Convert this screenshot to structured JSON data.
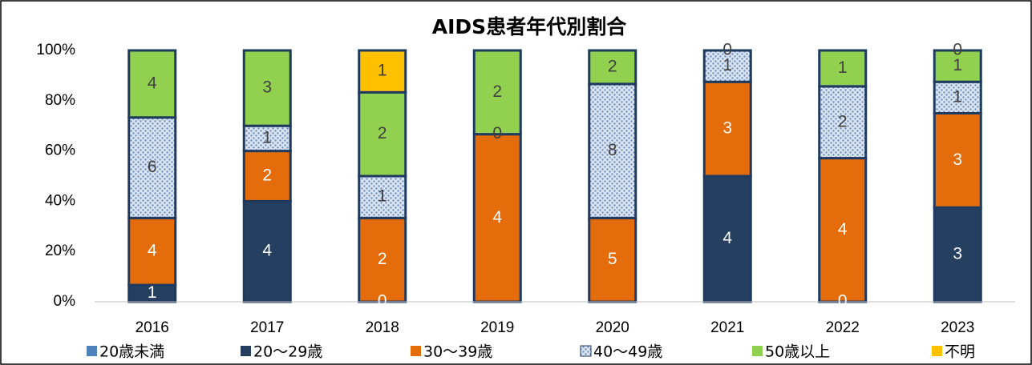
{
  "chart_data": {
    "type": "bar",
    "stacking": "percent",
    "title": "AIDS患者年代別割合",
    "categories": [
      "2016",
      "2017",
      "2018",
      "2019",
      "2020",
      "2021",
      "2022",
      "2023"
    ],
    "series": [
      {
        "name": "20歳未満",
        "color": "#4f81bd",
        "label_color": "#ffffff",
        "values": [
          null,
          null,
          null,
          null,
          null,
          null,
          null,
          null
        ]
      },
      {
        "name": "20～29歳",
        "color": "#243f60",
        "label_color": "#ffffff",
        "values": [
          1,
          4,
          0,
          null,
          null,
          4,
          0,
          3
        ]
      },
      {
        "name": "30～39歳",
        "color": "#e46c0a",
        "label_color": "#ffffff",
        "values": [
          4,
          2,
          2,
          4,
          5,
          3,
          4,
          3
        ]
      },
      {
        "name": "40～49歳",
        "color": "#b8cce4",
        "pattern": "dotted",
        "label_color": "#404040",
        "values": [
          6,
          1,
          1,
          0,
          8,
          1,
          2,
          1
        ]
      },
      {
        "name": "50歳以上",
        "color": "#92d050",
        "label_color": "#404040",
        "values": [
          4,
          3,
          2,
          2,
          2,
          0,
          1,
          1
        ]
      },
      {
        "name": "不明",
        "color": "#ffc000",
        "label_color": "#404040",
        "values": [
          null,
          null,
          1,
          null,
          null,
          null,
          null,
          0
        ]
      }
    ],
    "ylim": [
      0,
      100
    ],
    "yticks": [
      {
        "value": 0,
        "label": "0%"
      },
      {
        "value": 20,
        "label": "20%"
      },
      {
        "value": 40,
        "label": "40%"
      },
      {
        "value": 60,
        "label": "60%"
      },
      {
        "value": 80,
        "label": "80%"
      },
      {
        "value": 100,
        "label": "100%"
      }
    ],
    "legend": "bottom"
  }
}
